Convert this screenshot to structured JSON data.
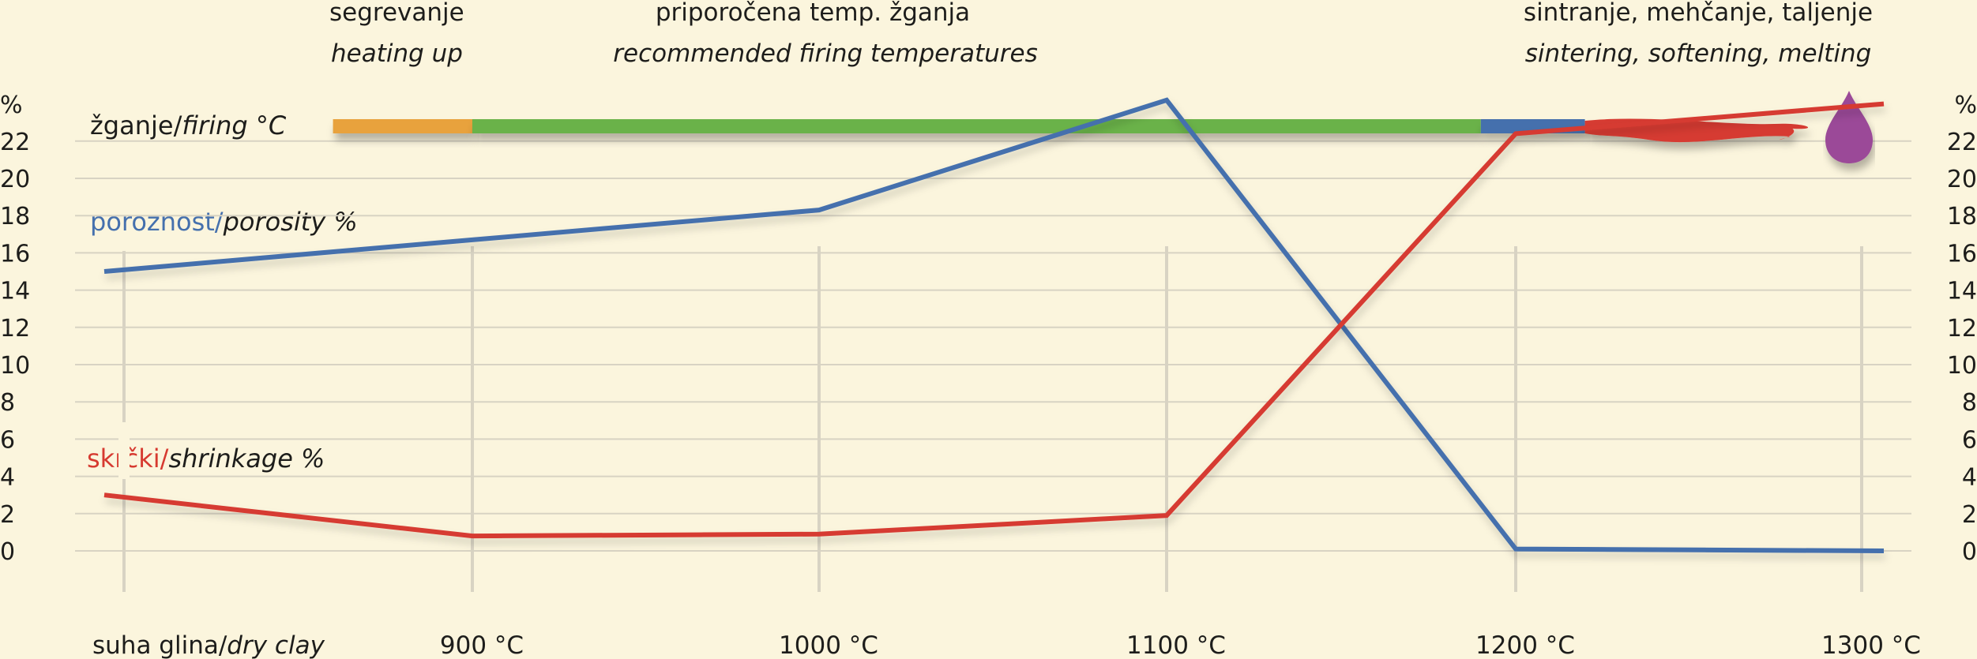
{
  "header": {
    "heating": {
      "sl": "segrevanje",
      "en": "heating up"
    },
    "recommended": {
      "sl": "priporočena temp. žganja",
      "en": "recommended firing temperatures"
    },
    "sintering": {
      "sl": "sintranje, mehčanje, taljenje",
      "en": "sintering, softening, melting"
    }
  },
  "labels": {
    "firing": {
      "sl": "žganje/",
      "en": "firing °C"
    },
    "porosity": {
      "sl": "poroznost/",
      "en": "porosity %"
    },
    "shrinkage": {
      "sl": "skrčki/",
      "en": "shrinkage %"
    }
  },
  "colors": {
    "background": "#fbf5dd",
    "grid": "#d8d3c3",
    "orange": "#e8a23c",
    "green": "#6ab24a",
    "blue": "#4570ad",
    "red": "#d63a30",
    "purple": "#9b4a98"
  },
  "chart_data": {
    "type": "line",
    "categories": [
      "suha glina/dry clay",
      "900 °C",
      "1000 °C",
      "1100 °C",
      "1200 °C",
      "1300 °C"
    ],
    "series": [
      {
        "name": "poroznost/porosity %",
        "color": "#4570ad",
        "x": [
          0,
          1,
          2,
          3,
          4,
          5
        ],
        "values": [
          15,
          16.7,
          18.3,
          24.2,
          0.1,
          0
        ]
      },
      {
        "name": "skrčki/shrinkage %",
        "color": "#d63a30",
        "x": [
          0,
          1,
          2,
          3,
          4,
          5
        ],
        "values": [
          3,
          0.8,
          0.9,
          1.9,
          22.4,
          24
        ]
      }
    ],
    "y_unit": "%",
    "y_ticks": [
      0,
      2,
      4,
      6,
      8,
      10,
      12,
      14,
      16,
      18,
      20,
      22
    ],
    "ylim": [
      0,
      24
    ],
    "firing_bar": [
      {
        "phase": "heating up",
        "from": 0.6,
        "to": 1.0,
        "color": "#e8a23c"
      },
      {
        "phase": "recommended firing temperatures",
        "from": 1.0,
        "to": 3.9,
        "color": "#6ab24a"
      },
      {
        "phase": "sintering",
        "from": 3.9,
        "to": 4.2,
        "color": "#4570ad"
      },
      {
        "phase": "softening",
        "from": 4.2,
        "to": 4.8,
        "color": "#d63a30"
      },
      {
        "phase": "melting",
        "from": 4.8,
        "to": 5.0,
        "color": "#9b4a98"
      }
    ],
    "grid": true
  }
}
